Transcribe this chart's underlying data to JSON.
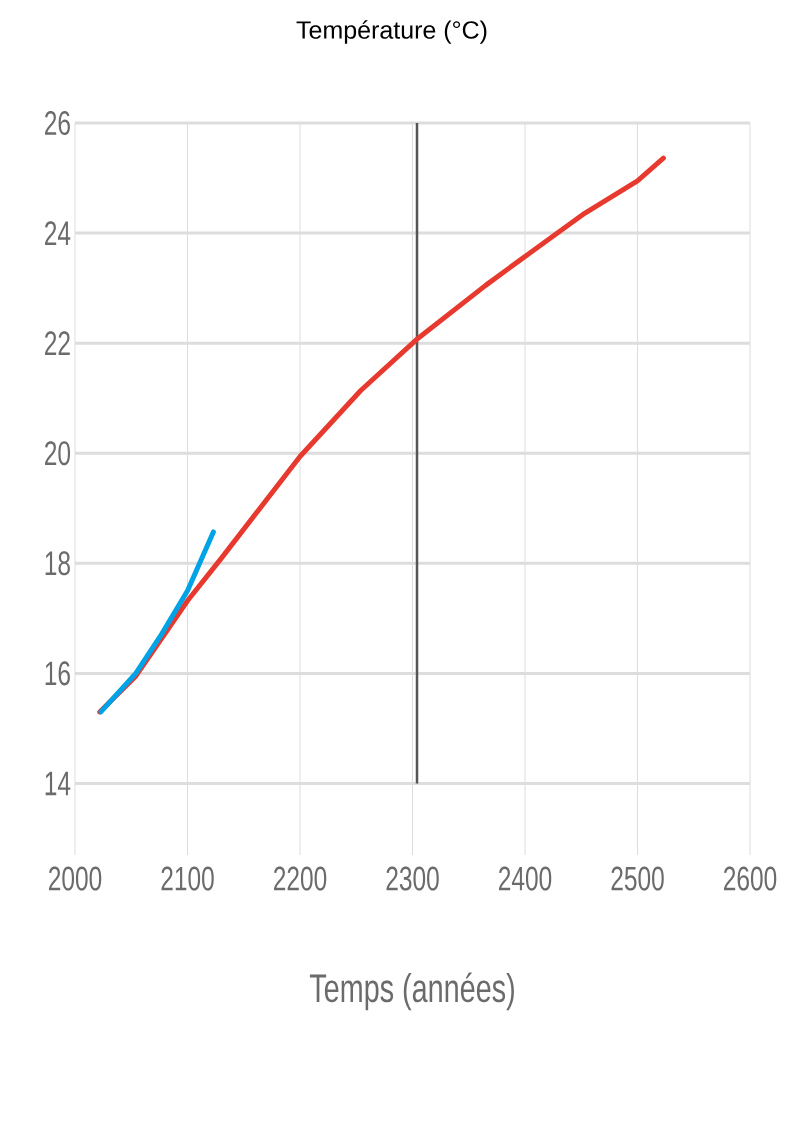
{
  "chart_data": {
    "type": "line",
    "title": "Température (°C)",
    "xlabel": "Temps (années)",
    "xlim": [
      2000,
      2600
    ],
    "ylim": [
      12.7,
      26
    ],
    "xticks": [
      2000,
      2100,
      2200,
      2300,
      2400,
      2500,
      2600
    ],
    "yticks": [
      14,
      16,
      18,
      20,
      22,
      24,
      26
    ],
    "grid": true,
    "marker": "none",
    "line_style": "solid",
    "ref_lines": [
      {
        "axis": "x",
        "value": 2304,
        "color": "#555555"
      }
    ],
    "series": [
      {
        "color": "#e8392f",
        "x": [
          2022,
          2054,
          2100,
          2130,
          2200,
          2254,
          2305,
          2365,
          2401,
          2453,
          2500,
          2523
        ],
        "values": [
          15.3,
          15.95,
          17.32,
          18.09,
          19.94,
          21.14,
          22.09,
          23.05,
          23.59,
          24.36,
          24.95,
          25.36
        ]
      },
      {
        "color": "#00a3e6",
        "x": [
          2023,
          2054,
          2076,
          2100,
          2123
        ],
        "values": [
          15.3,
          16.0,
          16.68,
          17.5,
          18.57
        ]
      }
    ]
  }
}
